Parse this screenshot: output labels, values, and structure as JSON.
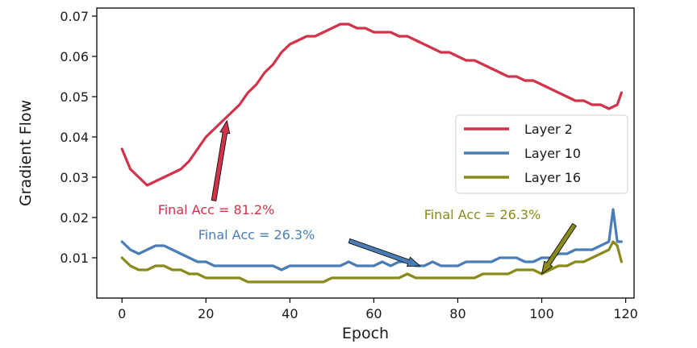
{
  "chart_data": {
    "type": "line",
    "xlabel": "Epoch",
    "ylabel": "Gradient Flow",
    "xlim": [
      -6,
      122
    ],
    "ylim": [
      0,
      0.072
    ],
    "x_ticks": [
      0,
      20,
      40,
      60,
      80,
      100,
      120
    ],
    "y_ticks": [
      0.01,
      0.02,
      0.03,
      0.04,
      0.05,
      0.06,
      0.07
    ],
    "grid": false,
    "legend_position": "right",
    "series": [
      {
        "name": "Layer 2",
        "color": "#d1334a",
        "x": [
          0,
          2,
          4,
          6,
          8,
          10,
          12,
          14,
          16,
          18,
          20,
          22,
          24,
          26,
          28,
          30,
          32,
          34,
          36,
          38,
          40,
          42,
          44,
          46,
          48,
          50,
          52,
          54,
          56,
          58,
          60,
          62,
          64,
          66,
          68,
          70,
          72,
          74,
          76,
          78,
          80,
          82,
          84,
          86,
          88,
          90,
          92,
          94,
          96,
          98,
          100,
          102,
          104,
          106,
          108,
          110,
          112,
          114,
          116,
          118,
          119
        ],
        "values": [
          0.037,
          0.032,
          0.03,
          0.028,
          0.029,
          0.03,
          0.031,
          0.032,
          0.034,
          0.037,
          0.04,
          0.042,
          0.044,
          0.046,
          0.048,
          0.051,
          0.053,
          0.056,
          0.058,
          0.061,
          0.063,
          0.064,
          0.065,
          0.065,
          0.066,
          0.067,
          0.068,
          0.068,
          0.067,
          0.067,
          0.066,
          0.066,
          0.066,
          0.065,
          0.065,
          0.064,
          0.063,
          0.062,
          0.061,
          0.061,
          0.06,
          0.059,
          0.059,
          0.058,
          0.057,
          0.056,
          0.055,
          0.055,
          0.054,
          0.054,
          0.053,
          0.052,
          0.051,
          0.05,
          0.049,
          0.049,
          0.048,
          0.048,
          0.047,
          0.048,
          0.051
        ]
      },
      {
        "name": "Layer 10",
        "color": "#4a7db7",
        "x": [
          0,
          2,
          4,
          6,
          8,
          10,
          12,
          14,
          16,
          18,
          20,
          22,
          24,
          26,
          28,
          30,
          32,
          34,
          36,
          38,
          40,
          42,
          44,
          46,
          48,
          50,
          52,
          54,
          56,
          58,
          60,
          62,
          64,
          66,
          68,
          70,
          72,
          74,
          76,
          78,
          80,
          82,
          84,
          86,
          88,
          90,
          92,
          94,
          96,
          98,
          100,
          102,
          104,
          106,
          108,
          110,
          112,
          114,
          116,
          117,
          118,
          119
        ],
        "values": [
          0.014,
          0.012,
          0.011,
          0.012,
          0.013,
          0.013,
          0.012,
          0.011,
          0.01,
          0.009,
          0.009,
          0.008,
          0.008,
          0.008,
          0.008,
          0.008,
          0.008,
          0.008,
          0.008,
          0.007,
          0.008,
          0.008,
          0.008,
          0.008,
          0.008,
          0.008,
          0.008,
          0.009,
          0.008,
          0.008,
          0.008,
          0.009,
          0.008,
          0.009,
          0.009,
          0.008,
          0.008,
          0.009,
          0.008,
          0.008,
          0.008,
          0.009,
          0.009,
          0.009,
          0.009,
          0.01,
          0.01,
          0.01,
          0.009,
          0.009,
          0.01,
          0.01,
          0.011,
          0.011,
          0.012,
          0.012,
          0.012,
          0.013,
          0.014,
          0.022,
          0.014,
          0.014
        ]
      },
      {
        "name": "Layer 16",
        "color": "#8a8a1a",
        "x": [
          0,
          2,
          4,
          6,
          8,
          10,
          12,
          14,
          16,
          18,
          20,
          22,
          24,
          26,
          28,
          30,
          32,
          34,
          36,
          38,
          40,
          42,
          44,
          46,
          48,
          50,
          52,
          54,
          56,
          58,
          60,
          62,
          64,
          66,
          68,
          70,
          72,
          74,
          76,
          78,
          80,
          82,
          84,
          86,
          88,
          90,
          92,
          94,
          96,
          98,
          100,
          102,
          104,
          106,
          108,
          110,
          112,
          114,
          116,
          117,
          118,
          119
        ],
        "values": [
          0.01,
          0.008,
          0.007,
          0.007,
          0.008,
          0.008,
          0.007,
          0.007,
          0.006,
          0.006,
          0.005,
          0.005,
          0.005,
          0.005,
          0.005,
          0.004,
          0.004,
          0.004,
          0.004,
          0.004,
          0.004,
          0.004,
          0.004,
          0.004,
          0.004,
          0.005,
          0.005,
          0.005,
          0.005,
          0.005,
          0.005,
          0.005,
          0.005,
          0.005,
          0.006,
          0.005,
          0.005,
          0.005,
          0.005,
          0.005,
          0.005,
          0.005,
          0.005,
          0.006,
          0.006,
          0.006,
          0.006,
          0.007,
          0.007,
          0.007,
          0.006,
          0.007,
          0.008,
          0.008,
          0.009,
          0.009,
          0.01,
          0.011,
          0.012,
          0.014,
          0.013,
          0.009
        ]
      }
    ],
    "annotations": [
      {
        "text": "Final Acc = 81.2%",
        "color": "#d1334a",
        "target": [
          25,
          0.044
        ],
        "arrow_color": "#d1334a"
      },
      {
        "text": "Final Acc = 26.3%",
        "color": "#4a7db7",
        "target": [
          71,
          0.008
        ],
        "arrow_color": "#4a7db7"
      },
      {
        "text": "Final Acc = 26.3%",
        "color": "#8a8a1a",
        "target": [
          100,
          0.006
        ],
        "arrow_color": "#8a8a1a"
      }
    ]
  }
}
